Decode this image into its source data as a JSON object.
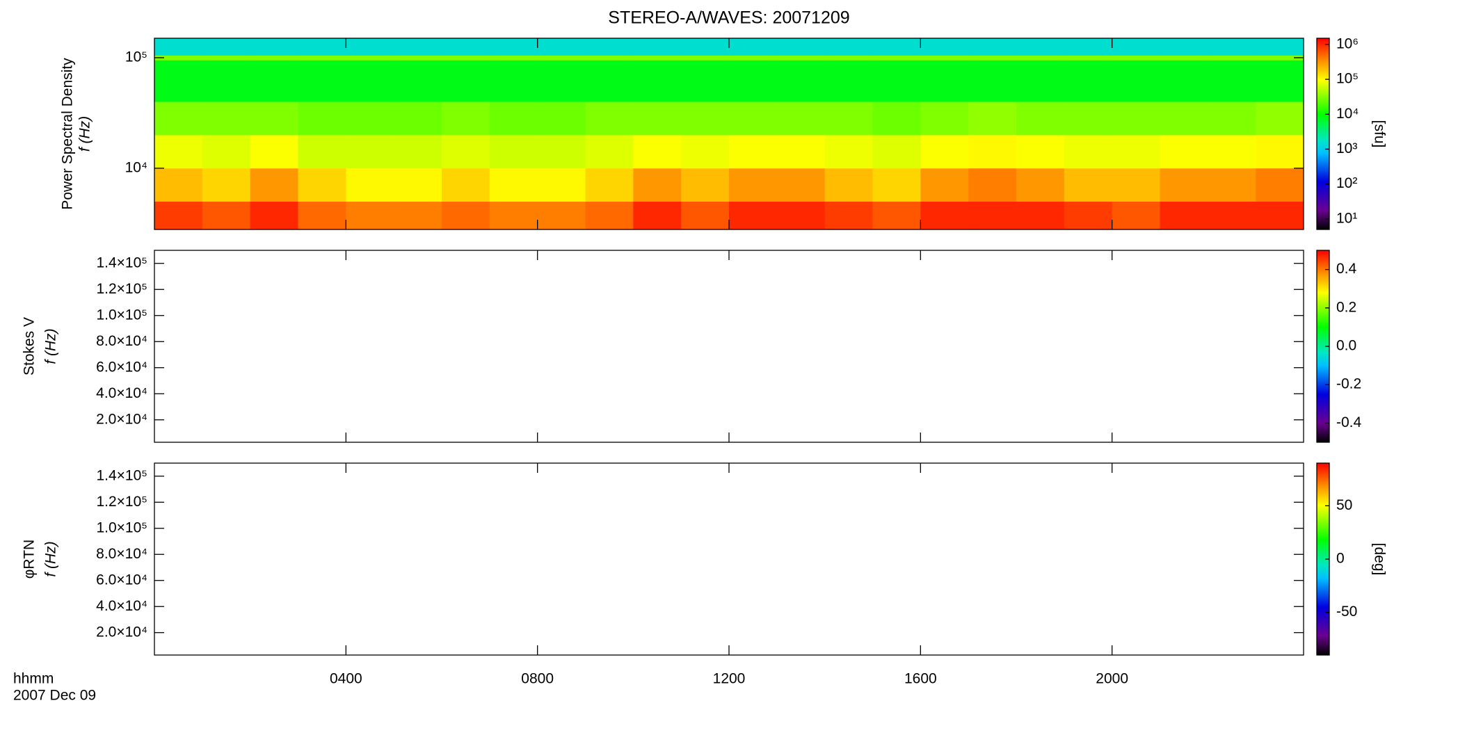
{
  "chart_data": [
    {
      "type": "heatmap",
      "title": "STEREO-A/WAVES: 20071209",
      "ylabel": "Power Spectral Density",
      "ylabel_unit": "f (Hz)",
      "yscale": "log",
      "ylim": [
        2790,
        150000
      ],
      "yticks": [
        {
          "value": 10000,
          "label": "10⁴"
        },
        {
          "value": 100000,
          "label": "10⁵"
        }
      ],
      "xlim": [
        0,
        24
      ],
      "x_bins": [
        0,
        1,
        2,
        3,
        4,
        5,
        6,
        7,
        8,
        9,
        10,
        11,
        12,
        13,
        14,
        15,
        16,
        17,
        18,
        19,
        20,
        21,
        22,
        23,
        24
      ],
      "y_bins": [
        2790,
        5000,
        10000,
        20000,
        40000,
        95000,
        105000,
        150000
      ],
      "z": [
        [
          800000,
          600000,
          1000000,
          500000,
          400000,
          400000,
          500000,
          400000,
          400000,
          500000,
          1000000,
          600000,
          1000000,
          1000000,
          800000,
          600000,
          1000000,
          1000000,
          1000000,
          800000,
          600000,
          1000000,
          1000000,
          1000000
        ],
        [
          200000,
          150000,
          300000,
          150000,
          100000,
          100000,
          150000,
          100000,
          100000,
          150000,
          300000,
          200000,
          300000,
          300000,
          200000,
          150000,
          300000,
          400000,
          300000,
          200000,
          200000,
          300000,
          300000,
          400000
        ],
        [
          80000,
          70000,
          90000,
          60000,
          60000,
          60000,
          70000,
          60000,
          60000,
          70000,
          90000,
          80000,
          90000,
          90000,
          80000,
          70000,
          90000,
          100000,
          90000,
          80000,
          80000,
          90000,
          90000,
          100000
        ],
        [
          30000,
          30000,
          30000,
          25000,
          25000,
          25000,
          30000,
          25000,
          25000,
          30000,
          30000,
          30000,
          30000,
          30000,
          30000,
          25000,
          30000,
          35000,
          30000,
          30000,
          30000,
          30000,
          30000,
          35000
        ],
        [
          8000,
          8000,
          8000,
          8000,
          8000,
          8000,
          8000,
          8000,
          8000,
          8000,
          8000,
          8000,
          8000,
          8000,
          8000,
          8000,
          8000,
          8000,
          8000,
          8000,
          8000,
          8000,
          8000,
          8000
        ],
        [
          30000,
          30000,
          30000,
          30000,
          30000,
          30000,
          30000,
          30000,
          30000,
          30000,
          30000,
          30000,
          30000,
          30000,
          30000,
          30000,
          30000,
          30000,
          30000,
          30000,
          30000,
          30000,
          30000,
          30000
        ],
        [
          1500,
          1500,
          1500,
          1500,
          1500,
          1500,
          1500,
          1500,
          1500,
          1500,
          1500,
          1500,
          1500,
          1500,
          1500,
          1500,
          1500,
          1500,
          1500,
          1500,
          1500,
          1500,
          1500,
          1500
        ]
      ],
      "colorbar": {
        "scale": "log",
        "lim": [
          5,
          1500000
        ],
        "label": "[sfu]",
        "ticks": [
          {
            "value": 10,
            "label": "10¹"
          },
          {
            "value": 100,
            "label": "10²"
          },
          {
            "value": 1000,
            "label": "10³"
          },
          {
            "value": 10000,
            "label": "10⁴"
          },
          {
            "value": 100000,
            "label": "10⁵"
          },
          {
            "value": 1000000,
            "label": "10⁶"
          }
        ]
      }
    },
    {
      "type": "heatmap",
      "ylabel": "Stokes V",
      "ylabel_unit": "f (Hz)",
      "yscale": "linear",
      "ylim": [
        2790,
        150000
      ],
      "yticks": [
        {
          "value": 20000,
          "label": "2.0×10⁴"
        },
        {
          "value": 40000,
          "label": "4.0×10⁴"
        },
        {
          "value": 60000,
          "label": "6.0×10⁴"
        },
        {
          "value": 80000,
          "label": "8.0×10⁴"
        },
        {
          "value": 100000,
          "label": "1.0×10⁵"
        },
        {
          "value": 120000,
          "label": "1.2×10⁵"
        },
        {
          "value": 140000,
          "label": "1.4×10⁵"
        }
      ],
      "xlim": [
        0,
        24
      ],
      "colorbar": {
        "scale": "linear",
        "lim": [
          -0.5,
          0.5
        ],
        "ticks": [
          -0.4,
          -0.2,
          {
            "value": 0,
            "label": "0.0"
          },
          0.2,
          0.4
        ]
      }
    },
    {
      "type": "heatmap",
      "ylabel": "φRTN",
      "ylabel_unit": "f (Hz)",
      "yscale": "linear",
      "ylim": [
        2790,
        150000
      ],
      "yticks": [
        {
          "value": 20000,
          "label": "2.0×10⁴"
        },
        {
          "value": 40000,
          "label": "4.0×10⁴"
        },
        {
          "value": 60000,
          "label": "6.0×10⁴"
        },
        {
          "value": 80000,
          "label": "8.0×10⁴"
        },
        {
          "value": 100000,
          "label": "1.0×10⁵"
        },
        {
          "value": 120000,
          "label": "1.2×10⁵"
        },
        {
          "value": 140000,
          "label": "1.4×10⁵"
        }
      ],
      "xlim": [
        0,
        24
      ],
      "xticks": [
        {
          "value": 4,
          "label": "0400"
        },
        {
          "value": 8,
          "label": "0800"
        },
        {
          "value": 12,
          "label": "1200"
        },
        {
          "value": 16,
          "label": "1600"
        },
        {
          "value": 20,
          "label": "2000"
        }
      ],
      "xlabel": "hhmm",
      "date": "2007 Dec 09",
      "colorbar": {
        "scale": "linear",
        "lim": [
          -90,
          90
        ],
        "label": "[deg]",
        "ticks": [
          -50,
          0,
          50
        ]
      }
    }
  ]
}
